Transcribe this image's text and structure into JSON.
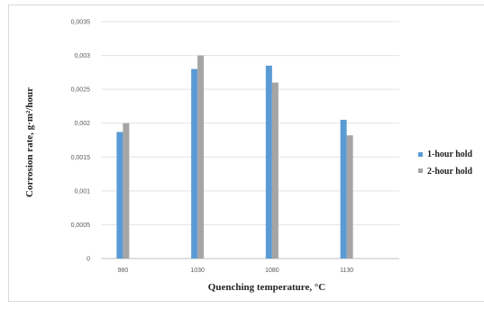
{
  "chart_data": {
    "type": "bar",
    "categories": [
      "980",
      "1030",
      "1080",
      "1130"
    ],
    "series": [
      {
        "name": "1-hour hold",
        "values": [
          0.00187,
          0.0028,
          0.00285,
          0.00205
        ],
        "color": "#5b9bd5"
      },
      {
        "name": "2-hour hold",
        "values": [
          0.002,
          0.003,
          0.0026,
          0.00182
        ],
        "color": "#a5a5a5"
      }
    ],
    "xlabel": "Quenching temperature, °C",
    "ylabel": "Corrosion rate, g·m²/hour",
    "ylim": [
      0,
      0.0035
    ],
    "y_ticks": [
      "0",
      "0,0005",
      "0,001",
      "0,0015",
      "0,002",
      "0,0025",
      "0,003",
      "0,0035"
    ],
    "grid": true,
    "legend_position": "right"
  }
}
